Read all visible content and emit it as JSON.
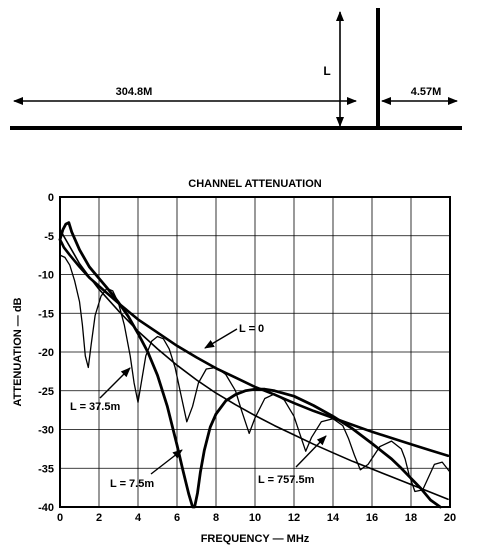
{
  "diagram": {
    "main_length_label": "304.8M",
    "branch_label": "L",
    "stub_label": "4.57M"
  },
  "chart_data": {
    "type": "line",
    "title": "CHANNEL ATTENUATION",
    "xlabel": "FREQUENCY — MHz",
    "ylabel": "ATTENUATION — dB",
    "xlim": [
      0,
      20
    ],
    "ylim": [
      -40,
      0
    ],
    "x_ticks": [
      "0",
      "2",
      "4",
      "6",
      "8",
      "10",
      "12",
      "14",
      "16",
      "18",
      "20"
    ],
    "y_ticks": [
      "0",
      "-5",
      "-10",
      "-15",
      "-20",
      "-25",
      "-30",
      "-35",
      "-40"
    ],
    "grid": true,
    "series": [
      {
        "name": "L = 0",
        "x": [
          0,
          0.1,
          0.2,
          0.5,
          1,
          1.5,
          2,
          3,
          4,
          5,
          6,
          7,
          8,
          9,
          10,
          11,
          12,
          13,
          14,
          15,
          16,
          17,
          18,
          19,
          19.9
        ],
        "y": [
          -5.5,
          -6,
          -6.5,
          -7.5,
          -9,
          -10.4,
          -11.5,
          -13.7,
          -15.8,
          -17.5,
          -19.2,
          -20.7,
          -22.1,
          -23.3,
          -24.5,
          -25.5,
          -26.6,
          -27.6,
          -28.5,
          -29.4,
          -30.3,
          -31.1,
          -31.9,
          -32.7,
          -33.4
        ]
      },
      {
        "name": "L = 7.5m",
        "x": [
          0,
          0.15,
          0.3,
          0.45,
          0.6,
          1,
          1.5,
          2,
          2.5,
          3,
          3.5,
          4,
          4.5,
          5,
          5.5,
          6,
          6.3,
          6.6,
          6.8,
          6.9,
          7.05,
          7.2,
          7.4,
          7.7,
          8,
          8.5,
          9,
          9.5,
          10,
          10.5,
          11,
          12,
          13,
          14,
          15,
          16,
          17,
          17.5,
          18,
          18.5,
          19,
          19.5
        ],
        "y": [
          -5.5,
          -4.2,
          -3.5,
          -3.3,
          -4.5,
          -6.8,
          -9,
          -10.5,
          -12,
          -13.6,
          -15.4,
          -17.6,
          -20,
          -23,
          -27,
          -32,
          -35.2,
          -38.3,
          -40,
          -40,
          -38.2,
          -35.5,
          -32.7,
          -29.7,
          -28,
          -26.3,
          -25.5,
          -25,
          -24.8,
          -24.8,
          -25,
          -25.7,
          -26.9,
          -28.3,
          -29.9,
          -31.8,
          -33.8,
          -35,
          -36.3,
          -37.6,
          -39.1,
          -40
        ]
      },
      {
        "name": "L = 37.5m",
        "x": [
          0,
          0.25,
          0.5,
          0.75,
          1,
          1.15,
          1.3,
          1.45,
          1.6,
          1.8,
          2.1,
          2.4,
          2.7,
          3,
          3.3,
          3.6,
          3.8,
          4,
          4.2,
          4.4,
          4.7,
          5,
          5.3,
          5.6,
          5.9,
          6.2,
          6.5,
          6.8,
          7.1,
          7.5,
          8,
          8.5,
          9,
          9.3,
          9.7,
          10,
          10.5,
          11,
          11.5,
          12,
          12.3,
          12.6,
          12.9,
          13.4,
          14,
          14.5,
          14.8,
          15.1,
          15.4,
          15.8,
          16.4,
          17,
          17.5,
          17.7,
          17.9,
          18.2,
          18.6,
          19.2,
          19.6,
          20
        ],
        "y": [
          -7.5,
          -7.8,
          -8.8,
          -10.8,
          -13.5,
          -16.5,
          -20.5,
          -22,
          -19,
          -15.3,
          -12.8,
          -11.8,
          -12.1,
          -13.7,
          -16.5,
          -20.5,
          -24,
          -26.5,
          -23.5,
          -20.5,
          -18.6,
          -18,
          -18.3,
          -19.6,
          -22,
          -25.5,
          -29,
          -27,
          -24,
          -22.2,
          -22,
          -22.9,
          -25,
          -27.5,
          -30.5,
          -28.5,
          -26,
          -25.4,
          -26.2,
          -28.3,
          -30.6,
          -32.8,
          -31,
          -29,
          -28.6,
          -29.5,
          -31.2,
          -33.3,
          -35.2,
          -34.5,
          -32.2,
          -31.5,
          -32.5,
          -33.8,
          -35.8,
          -38,
          -37.8,
          -34.5,
          -34.2,
          -35.5
        ]
      },
      {
        "name": "L = 757.5m",
        "x": [
          0,
          0.5,
          1,
          1.5,
          2,
          3,
          4,
          5,
          6,
          7,
          8,
          9,
          10,
          11,
          12,
          13,
          14,
          15,
          16,
          17,
          18,
          19,
          19.9
        ],
        "y": [
          -4.2,
          -6.4,
          -8.6,
          -10.3,
          -11.9,
          -14.7,
          -17.3,
          -19.6,
          -21.7,
          -23.6,
          -25.3,
          -26.8,
          -28.2,
          -29.5,
          -30.7,
          -31.9,
          -33,
          -34.1,
          -35.1,
          -36.1,
          -37.1,
          -38.1,
          -39
        ]
      }
    ],
    "annotations": [
      "L = 0",
      "L = 37.5m",
      "L = 7.5m",
      "L = 757.5m"
    ]
  }
}
